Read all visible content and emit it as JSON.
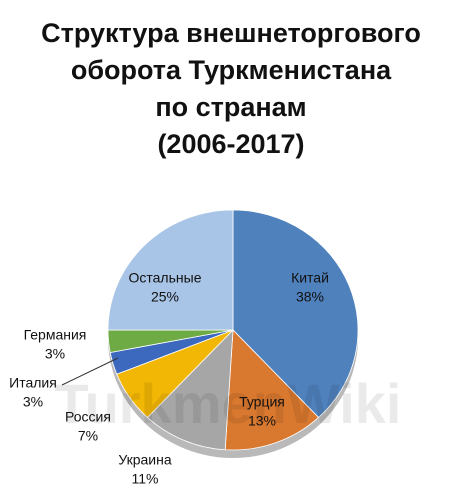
{
  "chart_data": {
    "type": "pie",
    "title": [
      "Структура внешнеторгового",
      "оборота Туркменистана",
      "по странам",
      "(2006-2017)"
    ],
    "watermark": "TurkmenWiki",
    "categories": [
      "Китай",
      "Турция",
      "Украина",
      "Россия",
      "Италия",
      "Германия",
      "Остальные"
    ],
    "values": [
      38,
      13,
      11,
      7,
      3,
      3,
      25
    ],
    "value_labels": [
      "38%",
      "13%",
      "11%",
      "7%",
      "3%",
      "3%",
      "25%"
    ],
    "colors": [
      "#4f81bd",
      "#d9782f",
      "#a6a6a6",
      "#f2b705",
      "#3c68bd",
      "#6fab45",
      "#a8c4e6"
    ]
  }
}
